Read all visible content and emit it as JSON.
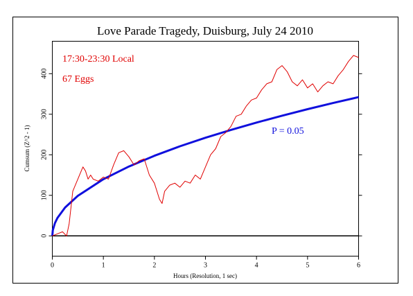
{
  "chart_data": {
    "type": "line",
    "title": "Love Parade Tragedy, Duisburg, July 24 2010",
    "xlabel": "Hours (Resolution, 1 sec)",
    "ylabel": "Cumsum (Z^2 - 1)",
    "xlim": [
      0,
      6
    ],
    "ylim": [
      -50,
      480
    ],
    "x_ticks": [
      0,
      1,
      2,
      3,
      4,
      5,
      6
    ],
    "y_ticks": [
      0,
      100,
      200,
      300,
      400
    ],
    "grid": false,
    "annotations": {
      "time_range": "17:30-23:30 Local",
      "eggs": "67 Eggs",
      "probability": "P = 0.05"
    },
    "colors": {
      "cumsum": "#e00000",
      "envelope": "#1010dd",
      "zero_line": "#000000",
      "annotation_red": "#e00000",
      "annotation_blue": "#1010dd"
    },
    "series": [
      {
        "x": [
          0,
          0.1,
          0.2,
          0.28,
          0.33,
          0.4,
          0.45,
          0.5,
          0.55,
          0.6,
          0.65,
          0.7,
          0.75,
          0.8,
          0.9,
          1.0,
          1.1,
          1.2,
          1.3,
          1.4,
          1.5,
          1.6,
          1.7,
          1.8,
          1.9,
          2.0,
          2.1,
          2.15,
          2.2,
          2.3,
          2.4,
          2.5,
          2.6,
          2.7,
          2.8,
          2.9,
          3.0,
          3.1,
          3.2,
          3.3,
          3.4,
          3.5,
          3.6,
          3.7,
          3.8,
          3.9,
          4.0,
          4.1,
          4.2,
          4.3,
          4.4,
          4.5,
          4.6,
          4.7,
          4.8,
          4.9,
          5.0,
          5.1,
          5.2,
          5.3,
          5.4,
          5.5,
          5.6,
          5.7,
          5.8,
          5.9,
          6.0
        ],
        "y": [
          0,
          5,
          10,
          0,
          30,
          110,
          125,
          140,
          155,
          170,
          160,
          140,
          150,
          140,
          135,
          145,
          140,
          175,
          205,
          210,
          195,
          175,
          185,
          190,
          150,
          130,
          90,
          80,
          110,
          125,
          130,
          120,
          135,
          130,
          150,
          140,
          170,
          200,
          215,
          245,
          255,
          270,
          295,
          300,
          320,
          335,
          340,
          360,
          375,
          380,
          410,
          420,
          405,
          380,
          370,
          385,
          365,
          375,
          355,
          370,
          380,
          375,
          395,
          410,
          430,
          445,
          440
        ]
      },
      {
        "name": "P = 0.05",
        "x": [
          0,
          0.01,
          0.05,
          0.1,
          0.25,
          0.5,
          1,
          1.5,
          2,
          2.5,
          3,
          3.5,
          4,
          4.5,
          5,
          5.5,
          6
        ],
        "y": [
          0,
          14.0,
          31.2,
          44.2,
          69.9,
          98.8,
          139.7,
          171.1,
          197.6,
          220.9,
          242.0,
          261.4,
          279.4,
          296.4,
          312.4,
          327.6,
          342.2
        ]
      },
      {
        "x": [
          0,
          6
        ],
        "y": [
          0,
          0
        ]
      }
    ]
  }
}
